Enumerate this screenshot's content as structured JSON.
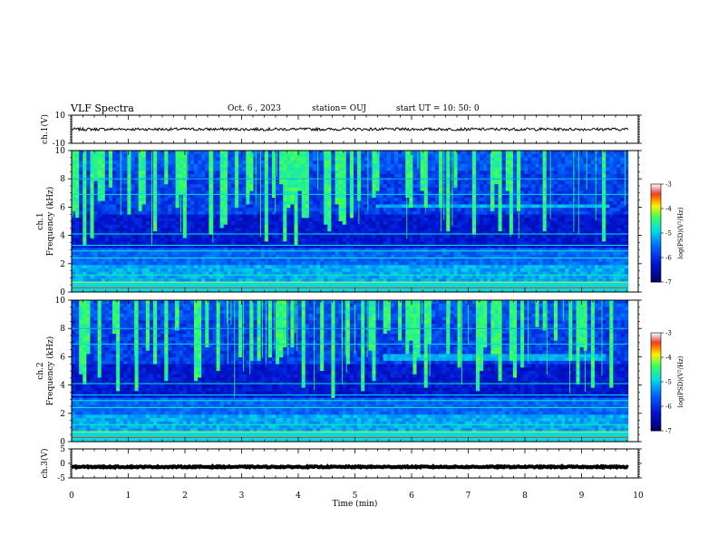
{
  "header": {
    "title": "VLF Spectra",
    "date": "Oct. 6 , 2023",
    "station": "station= OUJ",
    "start": "start UT = 10: 50: 0"
  },
  "chart_data": {
    "type": "heatmap",
    "title": "VLF Spectra",
    "xlabel": "Time (min)",
    "xlim": [
      0,
      10
    ],
    "x_ticks": [
      "0",
      "1",
      "2",
      "3",
      "4",
      "5",
      "6",
      "7",
      "8",
      "9",
      "10"
    ],
    "data_end_min": 9.82,
    "panels": [
      {
        "id": "ch1v",
        "type": "line",
        "ylabel": "ch.1(V)",
        "ylim": [
          -10,
          10
        ],
        "y_ticks": [
          "10",
          "-10"
        ],
        "trace_level": 0,
        "noise_amplitude": 1.0
      },
      {
        "id": "ch1",
        "type": "heatmap",
        "ylabel": "ch.1\nFrequency (kHz)",
        "ylim": [
          0,
          10
        ],
        "y_ticks": [
          "0",
          "2",
          "4",
          "6",
          "8",
          "10"
        ],
        "band_khz": [
          5.9,
          6.3
        ],
        "band_minutes": [
          5.4,
          9.5
        ],
        "colorbar": {
          "label": "log(PSD)(V²/Hz)",
          "ticks": [
            "-3",
            "-4",
            "-5",
            "-6",
            "-7"
          ],
          "range": [
            -7,
            -3
          ]
        }
      },
      {
        "id": "ch2",
        "type": "heatmap",
        "ylabel": "ch.2\nFrequency (kHz)",
        "ylim": [
          0,
          10
        ],
        "y_ticks": [
          "0",
          "2",
          "4",
          "6",
          "8",
          "10"
        ],
        "band_khz": [
          5.7,
          6.3
        ],
        "band_minutes": [
          5.5,
          9.4
        ],
        "colorbar": {
          "label": "log(PSD)(V²/Hz)",
          "ticks": [
            "-3",
            "-4",
            "-5",
            "-6",
            "-7"
          ],
          "range": [
            -7,
            -3
          ]
        }
      },
      {
        "id": "ch3v",
        "type": "line",
        "ylabel": "ch.3(V)",
        "ylim": [
          -5,
          5
        ],
        "y_ticks": [
          "5",
          "0",
          "-5"
        ],
        "trace_level": -1.2,
        "noise_amplitude": 0.2
      }
    ]
  }
}
